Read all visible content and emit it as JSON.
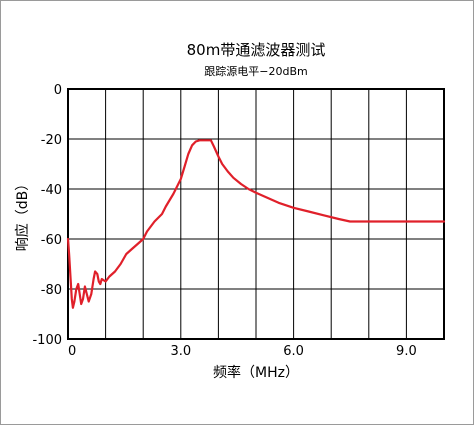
{
  "chart_data": {
    "type": "line",
    "title": "80m带通滤波器测试",
    "subtitle": "跟踪源电平−20dBm",
    "xlabel": "频率（MHz）",
    "ylabel": "响应（dB）",
    "xlim": [
      0,
      10
    ],
    "ylim": [
      -100,
      0
    ],
    "x_major_ticks": [
      0,
      3,
      6,
      9
    ],
    "x_tick_labels": [
      "0",
      "3.0",
      "6.0",
      "9.0"
    ],
    "x_gridlines_step": 1,
    "y_ticks": [
      0,
      -20,
      -40,
      -60,
      -80,
      -100
    ],
    "y_tick_labels": [
      "0",
      "-20",
      "-40",
      "-60",
      "-80",
      "-100"
    ],
    "grid": true,
    "line_color": "#e0202a",
    "series": [
      {
        "name": "",
        "points": [
          [
            0.0,
            -60
          ],
          [
            0.03,
            -66
          ],
          [
            0.07,
            -76
          ],
          [
            0.1,
            -84
          ],
          [
            0.13,
            -87.5
          ],
          [
            0.17,
            -85
          ],
          [
            0.22,
            -80
          ],
          [
            0.27,
            -78
          ],
          [
            0.31,
            -82
          ],
          [
            0.35,
            -86
          ],
          [
            0.4,
            -84
          ],
          [
            0.45,
            -79
          ],
          [
            0.5,
            -82
          ],
          [
            0.55,
            -85
          ],
          [
            0.62,
            -82
          ],
          [
            0.68,
            -76
          ],
          [
            0.72,
            -73
          ],
          [
            0.78,
            -74
          ],
          [
            0.82,
            -77
          ],
          [
            0.86,
            -78
          ],
          [
            0.9,
            -76
          ],
          [
            1.0,
            -77
          ],
          [
            1.1,
            -75
          ],
          [
            1.25,
            -73
          ],
          [
            1.4,
            -70
          ],
          [
            1.55,
            -66
          ],
          [
            1.7,
            -64
          ],
          [
            1.85,
            -62
          ],
          [
            2.0,
            -60
          ],
          [
            2.1,
            -57
          ],
          [
            2.3,
            -53
          ],
          [
            2.5,
            -50
          ],
          [
            2.6,
            -47
          ],
          [
            2.8,
            -42
          ],
          [
            3.0,
            -36
          ],
          [
            3.1,
            -31
          ],
          [
            3.2,
            -26
          ],
          [
            3.3,
            -22.5
          ],
          [
            3.4,
            -21
          ],
          [
            3.5,
            -20.5
          ],
          [
            3.8,
            -20.5
          ],
          [
            3.88,
            -23
          ],
          [
            4.0,
            -27
          ],
          [
            4.1,
            -30
          ],
          [
            4.25,
            -33
          ],
          [
            4.4,
            -35.5
          ],
          [
            4.6,
            -38
          ],
          [
            4.8,
            -40
          ],
          [
            5.0,
            -41.5
          ],
          [
            5.3,
            -43.5
          ],
          [
            5.6,
            -45.5
          ],
          [
            6.0,
            -47.5
          ],
          [
            6.4,
            -49
          ],
          [
            6.8,
            -50.5
          ],
          [
            7.2,
            -52
          ],
          [
            7.5,
            -53
          ],
          [
            8.0,
            -53
          ],
          [
            9.0,
            -53
          ],
          [
            10.0,
            -53
          ]
        ]
      }
    ]
  }
}
